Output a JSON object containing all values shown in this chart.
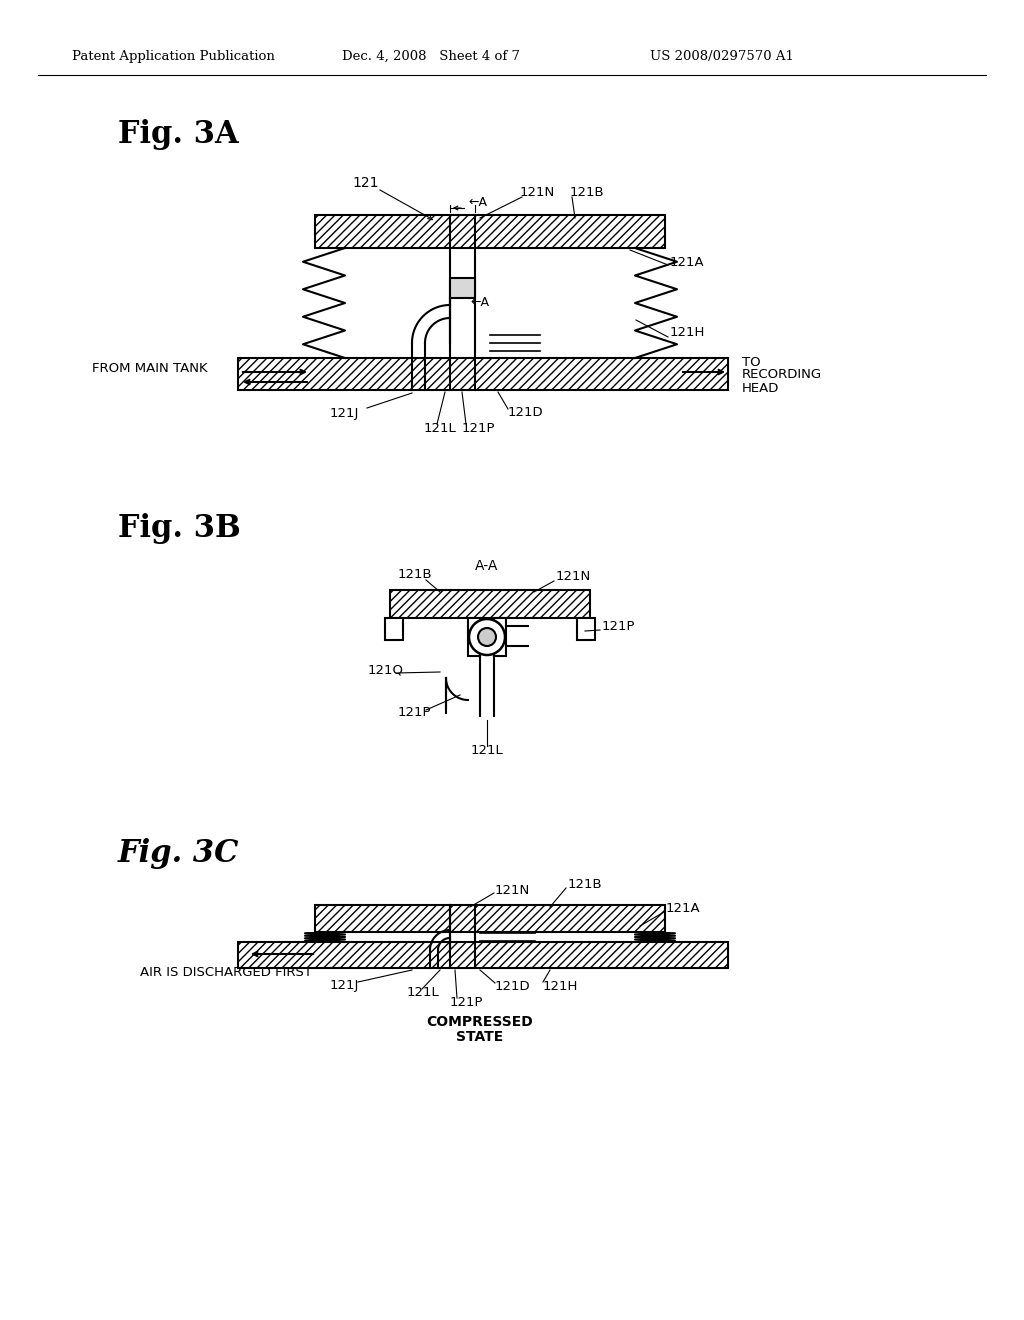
{
  "bg_color": "#ffffff",
  "header_left": "Patent Application Publication",
  "header_mid": "Dec. 4, 2008   Sheet 4 of 7",
  "header_right": "US 2008/0297570 A1"
}
